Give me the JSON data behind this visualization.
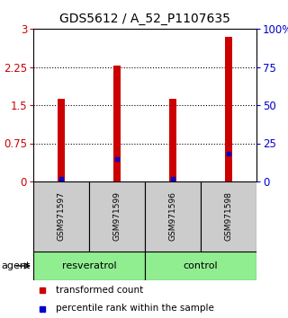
{
  "title": "GDS5612 / A_52_P1107635",
  "samples": [
    "GSM971597",
    "GSM971599",
    "GSM971596",
    "GSM971598"
  ],
  "transformed_counts": [
    1.62,
    2.28,
    1.62,
    2.85
  ],
  "percentile_ranks": [
    2.0,
    15.0,
    2.0,
    18.0
  ],
  "bar_color": "#cc0000",
  "percentile_color": "#0000cc",
  "left_ylim": [
    0,
    3
  ],
  "left_yticks": [
    0,
    0.75,
    1.5,
    2.25,
    3
  ],
  "right_ylim": [
    0,
    100
  ],
  "right_yticks": [
    0,
    25,
    50,
    75,
    100
  ],
  "right_yticklabels": [
    "0",
    "25",
    "50",
    "75",
    "100%"
  ],
  "background_color": "#ffffff",
  "title_fontsize": 10,
  "tick_fontsize": 8.5,
  "bar_width": 0.13
}
